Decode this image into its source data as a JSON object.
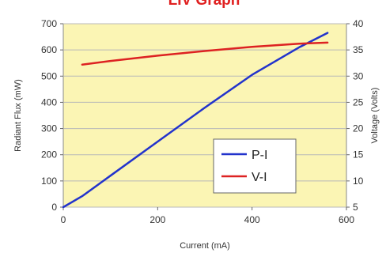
{
  "chart_data": {
    "type": "line",
    "title": "LIV Graph",
    "xlabel": "Current (mA)",
    "ylabel": "Radiant Flux (mW)",
    "y2label": "Voltage (Volts)",
    "xlim": [
      0,
      600
    ],
    "ylim": [
      0,
      700
    ],
    "y2lim": [
      5,
      40
    ],
    "x_ticks": [
      "0",
      "200",
      "400",
      "600"
    ],
    "y_ticks": [
      "0",
      "100",
      "200",
      "300",
      "400",
      "500",
      "600",
      "700"
    ],
    "y2_ticks": [
      "5",
      "10",
      "15",
      "20",
      "25",
      "30",
      "35",
      "40"
    ],
    "grid": true,
    "legend_position": "bottom-right",
    "series": [
      {
        "name": "P-I",
        "axis": "left",
        "color": "#2233cc",
        "x": [
          0,
          40,
          100,
          200,
          300,
          400,
          500,
          560
        ],
        "y": [
          0,
          42,
          120,
          250,
          380,
          505,
          610,
          665
        ]
      },
      {
        "name": "V-I",
        "axis": "right",
        "color": "#dd2222",
        "x": [
          40,
          100,
          200,
          300,
          400,
          500,
          560
        ],
        "y": [
          32.2,
          32.9,
          33.9,
          34.8,
          35.6,
          36.2,
          36.4
        ]
      }
    ]
  },
  "colors": {
    "plot_background": "#fbf5b4",
    "grid": "#b8b8b8",
    "title": "#e02020"
  }
}
